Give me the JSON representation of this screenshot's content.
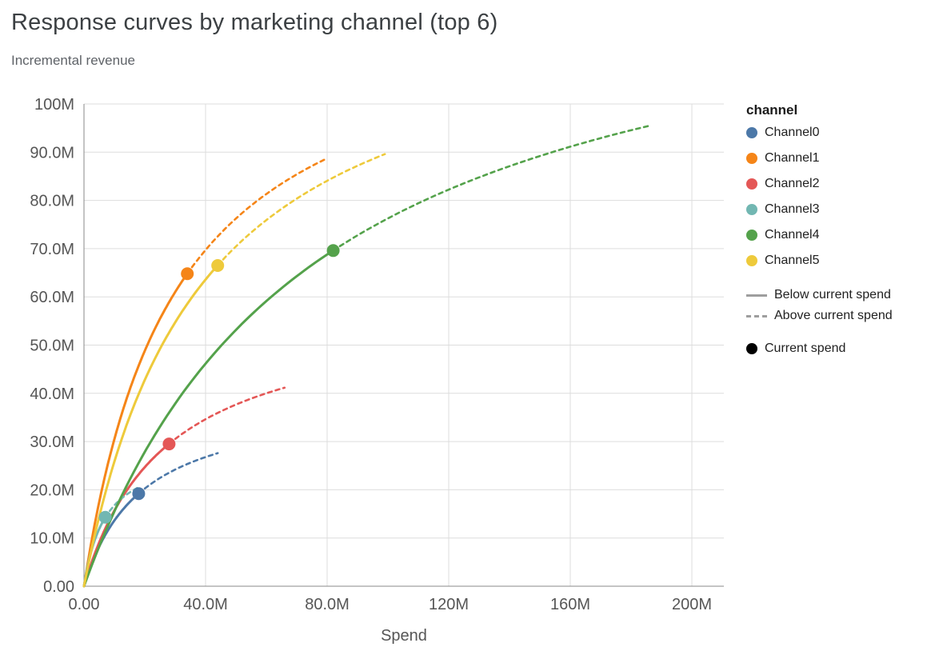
{
  "chart_data": {
    "type": "line",
    "title": "Response curves by marketing channel (top 6)",
    "subtitle": "Incremental revenue",
    "xlabel": "Spend",
    "ylabel": "Incremental revenue",
    "grid": true,
    "legend_position": "right",
    "xlim_millions": [
      0,
      210
    ],
    "ylim_millions": [
      0,
      100
    ],
    "x_ticks": [
      {
        "value_m": 0,
        "label": "0.00"
      },
      {
        "value_m": 40,
        "label": "40.0M"
      },
      {
        "value_m": 80,
        "label": "80.0M"
      },
      {
        "value_m": 120,
        "label": "120M"
      },
      {
        "value_m": 160,
        "label": "160M"
      },
      {
        "value_m": 200,
        "label": "200M"
      }
    ],
    "y_ticks": [
      {
        "value_m": 0,
        "label": "0.00"
      },
      {
        "value_m": 10,
        "label": "10.0M"
      },
      {
        "value_m": 20,
        "label": "20.0M"
      },
      {
        "value_m": 30,
        "label": "30.0M"
      },
      {
        "value_m": 40,
        "label": "40.0M"
      },
      {
        "value_m": 50,
        "label": "50.0M"
      },
      {
        "value_m": 60,
        "label": "60.0M"
      },
      {
        "value_m": 70,
        "label": "70.0M"
      },
      {
        "value_m": 80,
        "label": "80.0M"
      },
      {
        "value_m": 90,
        "label": "90.0M"
      },
      {
        "value_m": 100,
        "label": "100M"
      }
    ],
    "curve_model": "revenue_m = vmax_m * spend_m / (spend_m + k_m); drawn solid from 0 to current spend, dashed from current spend to max spend, dot at current spend",
    "series": [
      {
        "name": "Channel0",
        "color": "#4c78a8",
        "vmax_m": 39.5,
        "k_m": 19,
        "current_spend_m": 18,
        "current_revenue_m": 19.2,
        "max_spend_m": 44,
        "max_revenue_m": 27.6
      },
      {
        "name": "Channel1",
        "color": "#f58518",
        "vmax_m": 122,
        "k_m": 30,
        "current_spend_m": 34,
        "current_revenue_m": 64.8,
        "max_spend_m": 80,
        "max_revenue_m": 88.7
      },
      {
        "name": "Channel2",
        "color": "#e45756",
        "vmax_m": 58,
        "k_m": 27,
        "current_spend_m": 28,
        "current_revenue_m": 29.5,
        "max_spend_m": 66,
        "max_revenue_m": 41.2
      },
      {
        "name": "Channel3",
        "color": "#72b7b2",
        "vmax_m": 28.5,
        "k_m": 7,
        "current_spend_m": 7,
        "current_revenue_m": 14.3,
        "max_spend_m": 18,
        "max_revenue_m": 20.5
      },
      {
        "name": "Channel4",
        "color": "#54a24b",
        "vmax_m": 135,
        "k_m": 77,
        "current_spend_m": 82,
        "current_revenue_m": 69.6,
        "max_spend_m": 186,
        "max_revenue_m": 95.5
      },
      {
        "name": "Channel5",
        "color": "#eeca3b",
        "vmax_m": 124,
        "k_m": 38,
        "current_spend_m": 44,
        "current_revenue_m": 66.5,
        "max_spend_m": 99,
        "max_revenue_m": 89.6
      }
    ],
    "legend": {
      "title": "channel",
      "channels": [
        {
          "label": "Channel0",
          "color": "#4c78a8"
        },
        {
          "label": "Channel1",
          "color": "#f58518"
        },
        {
          "label": "Channel2",
          "color": "#e45756"
        },
        {
          "label": "Channel3",
          "color": "#72b7b2"
        },
        {
          "label": "Channel4",
          "color": "#54a24b"
        },
        {
          "label": "Channel5",
          "color": "#eeca3b"
        }
      ],
      "line_styles": [
        {
          "label": "Below current spend",
          "style": "solid"
        },
        {
          "label": "Above current spend",
          "style": "dashed"
        }
      ],
      "marker": {
        "label": "Current spend",
        "color": "#000000"
      }
    },
    "style_colors": {
      "grid": "#dddddd",
      "axis": "#888888",
      "tick_text": "#565656",
      "legend_line_sample": "#9e9e9e"
    }
  }
}
